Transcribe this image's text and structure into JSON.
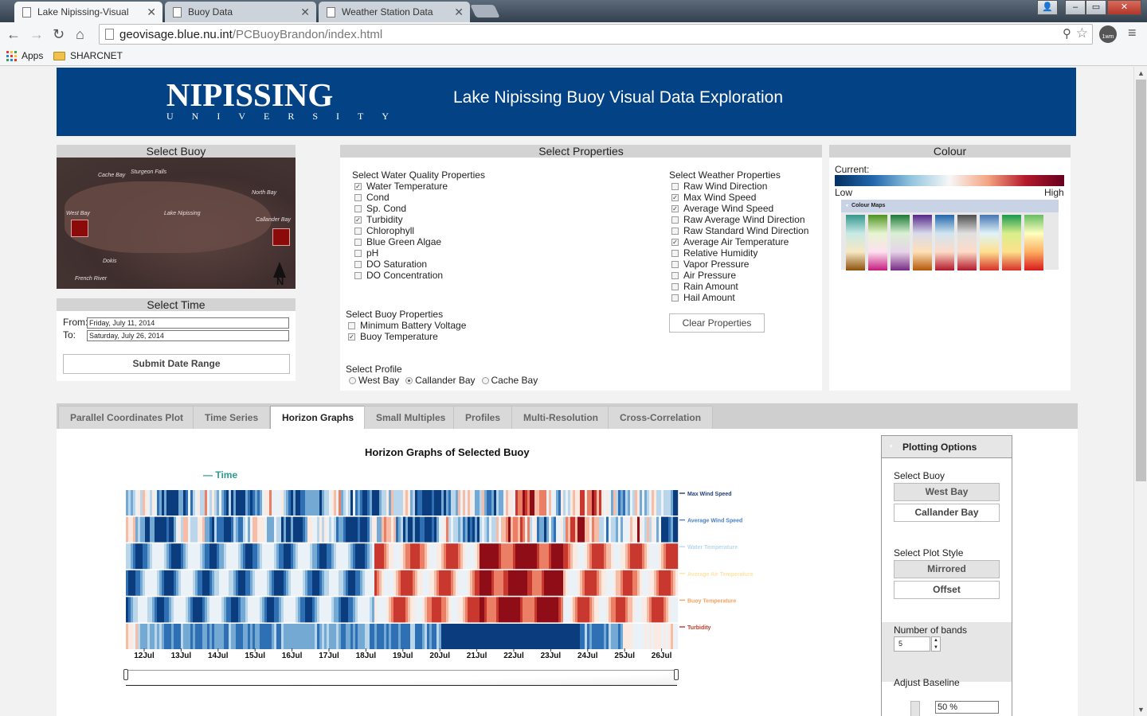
{
  "browser": {
    "tabs": [
      {
        "title": "Lake Nipissing-Visual",
        "active": true
      },
      {
        "title": "Buoy Data",
        "active": false
      },
      {
        "title": "Weather Station Data",
        "active": false
      }
    ],
    "url_host": "geovisage.blue.nu.int",
    "url_path": "/PCBuoyBrandon/index.html",
    "bookmarks": [
      "Apps",
      "SHARCNET"
    ],
    "profile_badge": "1wm"
  },
  "header": {
    "logo_main": "NIPISSING",
    "logo_sub": "UNIVERSITY",
    "title": "Lake Nipissing Buoy Visual Data Exploration"
  },
  "select_buoy": {
    "heading": "Select Buoy",
    "map_labels": [
      "Cache Bay",
      "Sturgeon Falls",
      "North Bay",
      "West Bay",
      "Lake Nipissing",
      "Callander Bay",
      "Dokis",
      "French River"
    ],
    "north_label": "N"
  },
  "select_time": {
    "heading": "Select Time",
    "from_label": "From:",
    "to_label": "To:",
    "from_value": "Friday, July 11, 2014",
    "to_value": "Saturday, July 26, 2014",
    "submit_label": "Submit Date Range"
  },
  "select_properties": {
    "heading": "Select Properties",
    "water_quality_heading": "Select Water Quality Properties",
    "water_quality": [
      {
        "label": "Water Temperature",
        "checked": true
      },
      {
        "label": "Cond",
        "checked": false
      },
      {
        "label": "Sp. Cond",
        "checked": false
      },
      {
        "label": "Turbidity",
        "checked": true
      },
      {
        "label": "Chlorophyll",
        "checked": false
      },
      {
        "label": "Blue Green Algae",
        "checked": false
      },
      {
        "label": "pH",
        "checked": false
      },
      {
        "label": "DO Saturation",
        "checked": false
      },
      {
        "label": "DO Concentration",
        "checked": false
      }
    ],
    "weather_heading": "Select Weather Properties",
    "weather": [
      {
        "label": "Raw Wind Direction",
        "checked": false
      },
      {
        "label": "Max Wind Speed",
        "checked": true
      },
      {
        "label": "Average Wind Speed",
        "checked": true
      },
      {
        "label": "Raw Average Wind Direction",
        "checked": false
      },
      {
        "label": "Raw Standard Wind Direction",
        "checked": false
      },
      {
        "label": "Average Air Temperature",
        "checked": true
      },
      {
        "label": "Relative Humidity",
        "checked": false
      },
      {
        "label": "Vapor Pressure",
        "checked": false
      },
      {
        "label": "Air Pressure",
        "checked": false
      },
      {
        "label": "Rain Amount",
        "checked": false
      },
      {
        "label": "Hail Amount",
        "checked": false
      }
    ],
    "buoy_heading": "Select Buoy Properties",
    "buoy": [
      {
        "label": "Minimum Battery Voltage",
        "checked": false
      },
      {
        "label": "Buoy Temperature",
        "checked": true
      }
    ],
    "clear_label": "Clear Properties",
    "profile_heading": "Select Profile",
    "profiles": [
      {
        "label": "West Bay",
        "selected": false
      },
      {
        "label": "Callander Bay",
        "selected": true
      },
      {
        "label": "Cache Bay",
        "selected": false
      }
    ]
  },
  "colour": {
    "heading": "Colour",
    "current_label": "Current:",
    "low_label": "Low",
    "high_label": "High",
    "maps_label": "Colour Maps",
    "swatches": [
      [
        "#35978f",
        "#c7eae5",
        "#f6e8c3",
        "#8c510a"
      ],
      [
        "#4d9221",
        "#e6f5d0",
        "#fde0ef",
        "#c51b7d"
      ],
      [
        "#1b7837",
        "#d9f0d3",
        "#e7d4e8",
        "#762a83"
      ],
      [
        "#542788",
        "#d8daeb",
        "#fee0b6",
        "#b35806"
      ],
      [
        "#2166ac",
        "#d1e5f0",
        "#fddbc7",
        "#b2182b"
      ],
      [
        "#4d4d4d",
        "#e0e0e0",
        "#fddbc7",
        "#b2182b"
      ],
      [
        "#4575b4",
        "#e0f3f8",
        "#fee090",
        "#d73027"
      ],
      [
        "#1a9850",
        "#d9ef8b",
        "#fee08b",
        "#d73027"
      ],
      [
        "#66bd63",
        "#ffffbf",
        "#fdae61",
        "#d7191c"
      ]
    ]
  },
  "view_tabs": [
    {
      "label": "Parallel Coordinates Plot",
      "active": false
    },
    {
      "label": "Time Series",
      "active": false
    },
    {
      "label": "Horizon Graphs",
      "active": true
    },
    {
      "label": "Small Multiples",
      "active": false
    },
    {
      "label": "Profiles",
      "active": false
    },
    {
      "label": "Multi-Resolution",
      "active": false
    },
    {
      "label": "Cross-Correlation",
      "active": false
    }
  ],
  "horizon": {
    "title": "Horizon Graphs of Selected Buoy",
    "time_legend": "— Time",
    "series": [
      {
        "name": "Max Wind Speed",
        "color": "#1f3f7a"
      },
      {
        "name": "Average Wind Speed",
        "color": "#4a7fc1"
      },
      {
        "name": "Water Temperature",
        "color": "#b9d8ec"
      },
      {
        "name": "Average Air Temperature",
        "color": "#fde3a6"
      },
      {
        "name": "Buoy Temperature",
        "color": "#f4a261"
      },
      {
        "name": "Turbidity",
        "color": "#c0392b"
      }
    ],
    "x_ticks": [
      "12Jul",
      "13Jul",
      "14Jul",
      "15Jul",
      "16Jul",
      "17Jul",
      "18Jul",
      "19Jul",
      "20Jul",
      "21Jul",
      "22Jul",
      "23Jul",
      "24Jul",
      "25Jul",
      "26Jul"
    ]
  },
  "plotting_options": {
    "heading": "Plotting Options",
    "buoy_label": "Select Buoy",
    "buoys": [
      {
        "label": "West Bay",
        "selected": true
      },
      {
        "label": "Callander Bay",
        "selected": false
      }
    ],
    "style_label": "Select Plot Style",
    "styles": [
      {
        "label": "Mirrored",
        "selected": true
      },
      {
        "label": "Offset",
        "selected": false
      }
    ],
    "bands_label": "Number of bands",
    "bands_value": "5",
    "baseline_label": "Adjust Baseline",
    "baseline_value": "50 %"
  }
}
